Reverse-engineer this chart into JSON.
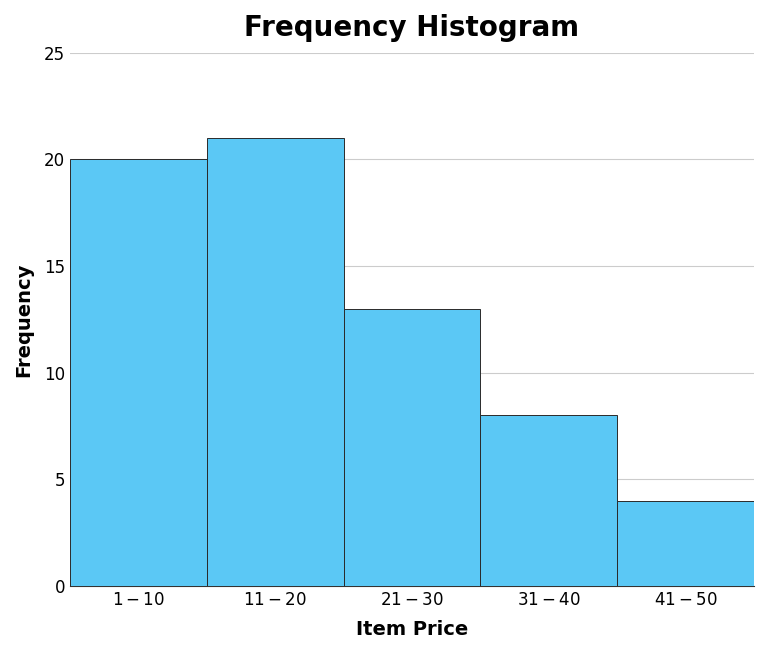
{
  "title": "Frequency Histogram",
  "xlabel": "Item Price",
  "ylabel": "Frequency",
  "categories": [
    "\\$1 - \\$10",
    "\\$11 - \\$20",
    "\\$21 - \\$30",
    "\\$31 - \\$40",
    "\\$41 - \\$50"
  ],
  "values": [
    20,
    21,
    13,
    8,
    4
  ],
  "bar_color": "#5BC8F5",
  "bar_edge_color": "#2a2a2a",
  "bar_edge_width": 0.7,
  "ylim": [
    0,
    25
  ],
  "yticks": [
    0,
    5,
    10,
    15,
    20,
    25
  ],
  "grid_color": "#cccccc",
  "background_color": "#ffffff",
  "title_fontsize": 20,
  "title_fontweight": "bold",
  "axis_label_fontsize": 14,
  "axis_label_fontweight": "bold",
  "tick_fontsize": 12
}
